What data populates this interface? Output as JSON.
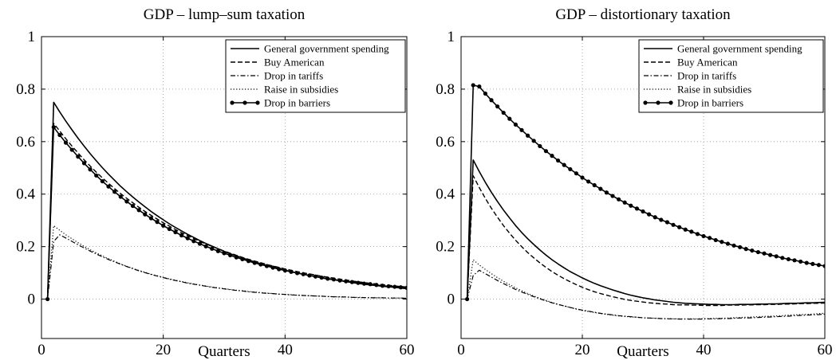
{
  "chart_data": [
    {
      "type": "line",
      "title": "GDP – lump–sum taxation",
      "xlabel": "Quarters",
      "ylabel": "",
      "xlim": [
        0,
        60
      ],
      "ylim": [
        -0.15,
        1
      ],
      "xticks": [
        0,
        20,
        40,
        60
      ],
      "yticks": [
        0,
        0.2,
        0.4,
        0.6,
        0.8,
        1
      ],
      "xtick_labels": [
        "0",
        "20",
        "40",
        "60"
      ],
      "ytick_labels": [
        "0",
        "0.2",
        "0.4",
        "0.6",
        "0.8",
        "1"
      ],
      "grid": true,
      "legend_position": "top-right",
      "x": [
        1,
        2,
        3,
        4,
        5,
        6,
        7,
        8,
        9,
        10,
        11,
        12,
        13,
        14,
        15,
        16,
        17,
        18,
        19,
        20,
        21,
        22,
        23,
        24,
        25,
        26,
        27,
        28,
        29,
        30,
        31,
        32,
        33,
        34,
        35,
        36,
        37,
        38,
        39,
        40,
        41,
        42,
        43,
        44,
        45,
        46,
        47,
        48,
        49,
        50,
        51,
        52,
        53,
        54,
        55,
        56,
        57,
        58,
        59,
        60
      ],
      "series": [
        {
          "name": "General government spending",
          "style": "solid",
          "values": [
            0,
            0.75,
            0.713,
            0.678,
            0.645,
            0.613,
            0.583,
            0.554,
            0.527,
            0.501,
            0.476,
            0.453,
            0.43,
            0.409,
            0.389,
            0.37,
            0.352,
            0.334,
            0.318,
            0.302,
            0.287,
            0.273,
            0.26,
            0.247,
            0.235,
            0.223,
            0.212,
            0.202,
            0.192,
            0.182,
            0.173,
            0.165,
            0.157,
            0.149,
            0.142,
            0.135,
            0.128,
            0.122,
            0.116,
            0.11,
            0.105,
            0.1,
            0.095,
            0.09,
            0.086,
            0.081,
            0.077,
            0.074,
            0.07,
            0.067,
            0.063,
            0.06,
            0.057,
            0.054,
            0.052,
            0.049,
            0.047,
            0.045,
            0.042,
            0.04
          ]
        },
        {
          "name": "Buy American",
          "style": "dashed",
          "values": [
            0,
            0.67,
            0.64,
            0.611,
            0.583,
            0.557,
            0.531,
            0.507,
            0.484,
            0.462,
            0.441,
            0.421,
            0.402,
            0.384,
            0.367,
            0.35,
            0.334,
            0.319,
            0.305,
            0.291,
            0.278,
            0.265,
            0.253,
            0.242,
            0.231,
            0.22,
            0.21,
            0.201,
            0.192,
            0.183,
            0.175,
            0.167,
            0.159,
            0.152,
            0.145,
            0.139,
            0.132,
            0.126,
            0.121,
            0.115,
            0.11,
            0.105,
            0.1,
            0.096,
            0.092,
            0.087,
            0.084,
            0.08,
            0.076,
            0.073,
            0.069,
            0.066,
            0.063,
            0.06,
            0.058,
            0.055,
            0.053,
            0.05,
            0.048,
            0.046
          ]
        },
        {
          "name": "Drop in tariffs",
          "style": "dashdot",
          "values": [
            0,
            0.22,
            0.245,
            0.233,
            0.22,
            0.207,
            0.195,
            0.183,
            0.172,
            0.161,
            0.151,
            0.142,
            0.133,
            0.124,
            0.116,
            0.108,
            0.101,
            0.094,
            0.088,
            0.082,
            0.076,
            0.071,
            0.066,
            0.061,
            0.057,
            0.053,
            0.049,
            0.045,
            0.042,
            0.039,
            0.036,
            0.033,
            0.031,
            0.028,
            0.026,
            0.024,
            0.022,
            0.021,
            0.019,
            0.018,
            0.016,
            0.015,
            0.014,
            0.013,
            0.012,
            0.011,
            0.01,
            0.009,
            0.008,
            0.008,
            0.007,
            0.006,
            0.006,
            0.005,
            0.005,
            0.005,
            0.004,
            0.004,
            0.004,
            0.003
          ]
        },
        {
          "name": "Raise in subsidies",
          "style": "dotted",
          "values": [
            0,
            0.28,
            0.262,
            0.245,
            0.23,
            0.215,
            0.201,
            0.188,
            0.176,
            0.165,
            0.154,
            0.144,
            0.134,
            0.125,
            0.117,
            0.109,
            0.102,
            0.095,
            0.089,
            0.083,
            0.077,
            0.072,
            0.067,
            0.062,
            0.058,
            0.054,
            0.05,
            0.046,
            0.043,
            0.04,
            0.037,
            0.034,
            0.032,
            0.029,
            0.027,
            0.025,
            0.023,
            0.021,
            0.019,
            0.018,
            0.017,
            0.015,
            0.014,
            0.013,
            0.012,
            0.011,
            0.01,
            0.009,
            0.009,
            0.008,
            0.007,
            0.007,
            0.006,
            0.006,
            0.005,
            0.005,
            0.004,
            0.004,
            0.004,
            0.003
          ]
        },
        {
          "name": "Drop in barriers",
          "style": "solid-dots",
          "values": [
            0,
            0.655,
            0.625,
            0.596,
            0.569,
            0.543,
            0.518,
            0.494,
            0.471,
            0.449,
            0.429,
            0.409,
            0.39,
            0.372,
            0.355,
            0.339,
            0.323,
            0.308,
            0.294,
            0.28,
            0.267,
            0.255,
            0.243,
            0.232,
            0.221,
            0.211,
            0.201,
            0.192,
            0.183,
            0.175,
            0.167,
            0.159,
            0.152,
            0.145,
            0.138,
            0.132,
            0.126,
            0.12,
            0.114,
            0.109,
            0.104,
            0.099,
            0.095,
            0.09,
            0.086,
            0.082,
            0.078,
            0.075,
            0.071,
            0.068,
            0.065,
            0.062,
            0.059,
            0.057,
            0.054,
            0.051,
            0.049,
            0.047,
            0.045,
            0.043
          ]
        }
      ]
    },
    {
      "type": "line",
      "title": "GDP – distortionary taxation",
      "xlabel": "Quarters",
      "ylabel": "",
      "xlim": [
        0,
        60
      ],
      "ylim": [
        -0.15,
        1
      ],
      "xticks": [
        0,
        20,
        40,
        60
      ],
      "yticks": [
        0,
        0.2,
        0.4,
        0.6,
        0.8,
        1
      ],
      "xtick_labels": [
        "0",
        "20",
        "40",
        "60"
      ],
      "ytick_labels": [
        "0",
        "0.2",
        "0.4",
        "0.6",
        "0.8",
        "1"
      ],
      "grid": true,
      "legend_position": "top-right",
      "x": [
        1,
        2,
        3,
        4,
        5,
        6,
        7,
        8,
        9,
        10,
        11,
        12,
        13,
        14,
        15,
        16,
        17,
        18,
        19,
        20,
        21,
        22,
        23,
        24,
        25,
        26,
        27,
        28,
        29,
        30,
        31,
        32,
        33,
        34,
        35,
        36,
        37,
        38,
        39,
        40,
        41,
        42,
        43,
        44,
        45,
        46,
        47,
        48,
        49,
        50,
        51,
        52,
        53,
        54,
        55,
        56,
        57,
        58,
        59,
        60
      ],
      "series": [
        {
          "name": "General government spending",
          "style": "solid",
          "values": [
            0,
            0.53,
            0.486,
            0.445,
            0.407,
            0.372,
            0.339,
            0.309,
            0.28,
            0.254,
            0.23,
            0.208,
            0.187,
            0.168,
            0.15,
            0.134,
            0.119,
            0.105,
            0.093,
            0.081,
            0.07,
            0.06,
            0.051,
            0.043,
            0.035,
            0.028,
            0.021,
            0.015,
            0.01,
            0.005,
            0.001,
            -0.003,
            -0.006,
            -0.009,
            -0.012,
            -0.014,
            -0.016,
            -0.017,
            -0.018,
            -0.019,
            -0.02,
            -0.02,
            -0.021,
            -0.021,
            -0.021,
            -0.02,
            -0.02,
            -0.02,
            -0.019,
            -0.019,
            -0.018,
            -0.018,
            -0.017,
            -0.016,
            -0.016,
            -0.015,
            -0.014,
            -0.014,
            -0.013,
            -0.012
          ]
        },
        {
          "name": "Buy American",
          "style": "dashed",
          "values": [
            0,
            0.47,
            0.425,
            0.384,
            0.346,
            0.312,
            0.28,
            0.251,
            0.224,
            0.2,
            0.177,
            0.157,
            0.138,
            0.121,
            0.105,
            0.091,
            0.078,
            0.066,
            0.055,
            0.045,
            0.036,
            0.028,
            0.021,
            0.015,
            0.009,
            0.004,
            -0.001,
            -0.005,
            -0.008,
            -0.011,
            -0.014,
            -0.016,
            -0.018,
            -0.019,
            -0.021,
            -0.022,
            -0.022,
            -0.023,
            -0.023,
            -0.024,
            -0.024,
            -0.024,
            -0.024,
            -0.023,
            -0.023,
            -0.023,
            -0.022,
            -0.022,
            -0.021,
            -0.021,
            -0.02,
            -0.02,
            -0.019,
            -0.019,
            -0.018,
            -0.017,
            -0.017,
            -0.016,
            -0.016,
            -0.015
          ]
        },
        {
          "name": "Drop in tariffs",
          "style": "dashdot",
          "values": [
            0,
            0.09,
            0.11,
            0.097,
            0.084,
            0.071,
            0.059,
            0.048,
            0.037,
            0.027,
            0.018,
            0.009,
            0.001,
            -0.007,
            -0.014,
            -0.02,
            -0.026,
            -0.032,
            -0.037,
            -0.042,
            -0.046,
            -0.05,
            -0.054,
            -0.057,
            -0.06,
            -0.063,
            -0.065,
            -0.067,
            -0.069,
            -0.071,
            -0.072,
            -0.073,
            -0.074,
            -0.075,
            -0.075,
            -0.076,
            -0.076,
            -0.076,
            -0.076,
            -0.076,
            -0.075,
            -0.075,
            -0.074,
            -0.074,
            -0.073,
            -0.072,
            -0.072,
            -0.071,
            -0.07,
            -0.069,
            -0.068,
            -0.067,
            -0.066,
            -0.065,
            -0.063,
            -0.062,
            -0.061,
            -0.06,
            -0.059,
            -0.057
          ]
        },
        {
          "name": "Raise in subsidies",
          "style": "dotted",
          "values": [
            0,
            0.15,
            0.13,
            0.113,
            0.097,
            0.082,
            0.068,
            0.055,
            0.043,
            0.032,
            0.021,
            0.012,
            0.003,
            -0.005,
            -0.013,
            -0.02,
            -0.026,
            -0.032,
            -0.038,
            -0.043,
            -0.047,
            -0.051,
            -0.055,
            -0.058,
            -0.061,
            -0.064,
            -0.066,
            -0.068,
            -0.069,
            -0.071,
            -0.072,
            -0.073,
            -0.074,
            -0.074,
            -0.075,
            -0.075,
            -0.075,
            -0.075,
            -0.075,
            -0.074,
            -0.074,
            -0.073,
            -0.073,
            -0.072,
            -0.071,
            -0.07,
            -0.069,
            -0.068,
            -0.067,
            -0.066,
            -0.065,
            -0.064,
            -0.063,
            -0.061,
            -0.06,
            -0.059,
            -0.058,
            -0.057,
            -0.055,
            -0.054
          ]
        },
        {
          "name": "Drop in barriers",
          "style": "solid-dots",
          "values": [
            0,
            0.815,
            0.81,
            0.783,
            0.758,
            0.734,
            0.71,
            0.687,
            0.665,
            0.644,
            0.623,
            0.603,
            0.583,
            0.564,
            0.546,
            0.528,
            0.511,
            0.495,
            0.479,
            0.463,
            0.448,
            0.434,
            0.42,
            0.406,
            0.393,
            0.38,
            0.368,
            0.356,
            0.345,
            0.334,
            0.323,
            0.312,
            0.302,
            0.293,
            0.283,
            0.274,
            0.265,
            0.257,
            0.248,
            0.24,
            0.233,
            0.225,
            0.218,
            0.211,
            0.204,
            0.198,
            0.191,
            0.185,
            0.179,
            0.174,
            0.168,
            0.163,
            0.157,
            0.152,
            0.148,
            0.143,
            0.138,
            0.134,
            0.13,
            0.126
          ]
        }
      ]
    }
  ]
}
